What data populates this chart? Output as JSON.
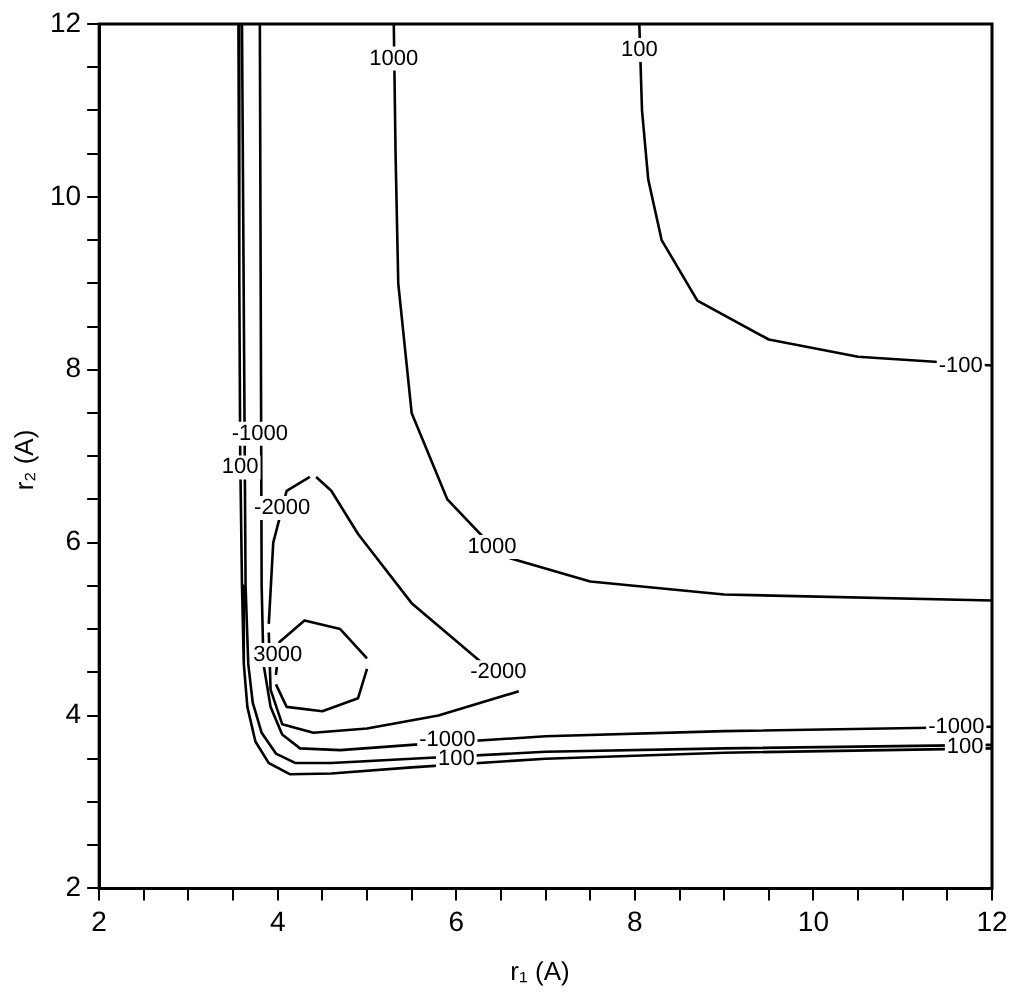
{
  "chart_data": {
    "type": "line",
    "xlabel": "r₁ (A)",
    "ylabel": "r₂ (A)",
    "xlim": [
      2,
      12
    ],
    "ylim": [
      2,
      12
    ],
    "xticks": [
      2,
      {
        "value": 2.5,
        "label": null
      },
      {
        "value": 3,
        "label": null
      },
      {
        "value": 3.5,
        "label": null
      },
      4,
      {
        "value": 4.5,
        "label": null
      },
      {
        "value": 5,
        "label": null
      },
      {
        "value": 5.5,
        "label": null
      },
      6,
      {
        "value": 6.5,
        "label": null
      },
      {
        "value": 7,
        "label": null
      },
      {
        "value": 7.5,
        "label": null
      },
      8,
      {
        "value": 8.5,
        "label": null
      },
      {
        "value": 9,
        "label": null
      },
      {
        "value": 9.5,
        "label": null
      },
      10,
      {
        "value": 10.5,
        "label": null
      },
      {
        "value": 11,
        "label": null
      },
      {
        "value": 11.5,
        "label": null
      },
      12
    ],
    "yticks": [
      2,
      {
        "value": 2.5,
        "label": null
      },
      {
        "value": 3,
        "label": null
      },
      {
        "value": 3.5,
        "label": null
      },
      4,
      {
        "value": 4.5,
        "label": null
      },
      {
        "value": 5,
        "label": null
      },
      {
        "value": 5.5,
        "label": null
      },
      6,
      {
        "value": 6.5,
        "label": null
      },
      {
        "value": 7,
        "label": null
      },
      {
        "value": 7.5,
        "label": null
      },
      8,
      {
        "value": 8.5,
        "label": null
      },
      {
        "value": 9,
        "label": null
      },
      {
        "value": 9.5,
        "label": null
      },
      10,
      {
        "value": 10.5,
        "label": null
      },
      {
        "value": 11,
        "label": null
      },
      {
        "value": 11.5,
        "label": null
      },
      12
    ],
    "legend": false,
    "marker": "none",
    "line_style": "solid",
    "series": [
      {
        "color": "#000000",
        "x": [
          3.56,
          3.57,
          3.58,
          3.6,
          3.62,
          3.66,
          3.75,
          3.9,
          4.14,
          4.6,
          5.5,
          7,
          9,
          12
        ],
        "values": [
          12,
          9,
          7,
          5.5,
          4.6,
          4.1,
          3.7,
          3.45,
          3.32,
          3.33,
          3.4,
          3.5,
          3.57,
          3.62
        ]
      },
      {
        "color": "#000000",
        "x": [
          3.6,
          3.64,
          3.67,
          3.72,
          3.82,
          3.98,
          4.2,
          4.6,
          5.5,
          7,
          9,
          12
        ],
        "values": [
          12,
          5.5,
          4.6,
          4.15,
          3.8,
          3.56,
          3.45,
          3.45,
          3.5,
          3.58,
          3.62,
          3.66
        ]
      },
      {
        "color": "#000000",
        "x": [
          3.8,
          3.82,
          3.84,
          3.92,
          4.05,
          4.25,
          4.7,
          5.5,
          7,
          9,
          12
        ],
        "values": [
          12,
          5.5,
          4.6,
          4.1,
          3.78,
          3.62,
          3.6,
          3.66,
          3.76,
          3.82,
          3.87
        ]
      },
      {
        "color": "#000000",
        "x": [
          3.9,
          3.95,
          4.1,
          4.36
        ],
        "values": [
          5.06,
          6,
          6.6,
          6.76
        ]
      },
      {
        "color": "#000000",
        "x": [
          3.9,
          3.92,
          4.05,
          4.4,
          5,
          5.8,
          6.7
        ],
        "values": [
          4.96,
          4.3,
          3.9,
          3.8,
          3.85,
          4,
          4.28
        ]
      },
      {
        "color": "#000000",
        "x": [
          4.43,
          4.6,
          4.9,
          5.5,
          6.3,
          6.62
        ],
        "values": [
          6.76,
          6.6,
          6.1,
          5.3,
          4.6,
          4.38
        ]
      },
      {
        "color": "#000000",
        "x": [
          3.98,
          4.02,
          4.3,
          4.7,
          5
        ],
        "values": [
          4.47,
          4.85,
          5.1,
          5,
          4.66
        ]
      },
      {
        "color": "#000000",
        "x": [
          3.98,
          4.1,
          4.5,
          4.9,
          5
        ],
        "values": [
          4.36,
          4.1,
          4.05,
          4.2,
          4.54
        ]
      },
      {
        "color": "#000000",
        "x": [
          5.3,
          5.32,
          5.35,
          5.5,
          5.9,
          6.5,
          7.5,
          9,
          12
        ],
        "values": [
          12,
          10.5,
          9,
          7.5,
          6.5,
          5.85,
          5.55,
          5.4,
          5.33
        ]
      },
      {
        "color": "#000000",
        "x": [
          8.05,
          8.08,
          8.15,
          8.3,
          8.7,
          9.5,
          10.5,
          12
        ],
        "values": [
          12,
          11,
          10.2,
          9.5,
          8.8,
          8.35,
          8.15,
          8.05
        ]
      }
    ],
    "annotations": [
      {
        "text": "100",
        "x": 3.58,
        "y": 6.87
      },
      {
        "text": "-1000",
        "x": 3.8,
        "y": 7.26
      },
      {
        "text": "-2000",
        "x": 4.05,
        "y": 6.4
      },
      {
        "text": "3000",
        "x": 4.0,
        "y": 4.7
      },
      {
        "text": "-2000",
        "x": 6.47,
        "y": 4.5
      },
      {
        "text": "-1000",
        "x": 5.9,
        "y": 3.72
      },
      {
        "text": "100",
        "x": 6.0,
        "y": 3.5
      },
      {
        "text": "-1000",
        "x": 11.6,
        "y": 3.87
      },
      {
        "text": "100",
        "x": 11.7,
        "y": 3.64
      },
      {
        "text": "1000",
        "x": 5.3,
        "y": 11.6
      },
      {
        "text": "1000",
        "x": 6.4,
        "y": 5.95
      },
      {
        "text": "100",
        "x": 8.05,
        "y": 11.7
      },
      {
        "text": "-100",
        "x": 11.65,
        "y": 8.05
      }
    ]
  }
}
